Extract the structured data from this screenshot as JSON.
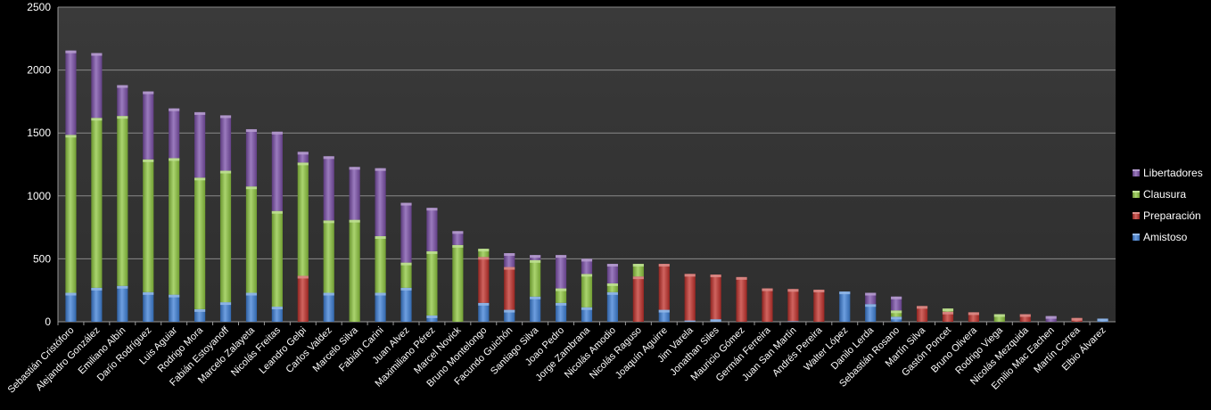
{
  "chart_data": {
    "type": "bar",
    "stacked": true,
    "categories": [
      "Sebastián Cristóforo",
      "Alejandro González",
      "Emiliano Albín",
      "Darío Rodríguez",
      "Luis Aguiar",
      "Rodrigo Mora",
      "Fabián Estoyanoff",
      "Marcelo Zalayeta",
      "Nicolás Freitas",
      "Leandro Gelpi",
      "Carlos Valdez",
      "Marcelo Silva",
      "Fabián Carini",
      "Juan Alvez",
      "Maximiliano Pérez",
      "Marcel Novick",
      "Bruno Montelongo",
      "Facundo Guichón",
      "Santiago Silva",
      "Joao Pedro",
      "Jorge Zambrana",
      "Nicolás Amodio",
      "Nicolás Raguso",
      "Joaquín Aguirre",
      "Jim Varela",
      "Jonathan Siles",
      "Mauricio Gómez",
      "Germán Ferreira",
      "Juan San Martín",
      "Andrés Pereira",
      "Walter López",
      "Danilo Lerda",
      "Sebastián Rosano",
      "Martín Silva",
      "Gastón Poncet",
      "Bruno Olivera",
      "Rodrigo Viega",
      "Nicolás Mezquida",
      "Emilio Mac Eachen",
      "Martín Correa",
      "Elbio Álvarez"
    ],
    "series": [
      {
        "name": "Amistoso",
        "color": "#3d7fd6",
        "values": [
          230,
          270,
          285,
          235,
          215,
          100,
          155,
          230,
          120,
          0,
          230,
          0,
          230,
          270,
          50,
          0,
          150,
          95,
          200,
          150,
          115,
          235,
          0,
          95,
          10,
          20,
          0,
          0,
          5,
          0,
          240,
          140,
          40,
          0,
          0,
          0,
          0,
          0,
          0,
          0,
          25
        ]
      },
      {
        "name": "Preparación",
        "color": "#c0302a",
        "values": [
          0,
          0,
          0,
          0,
          0,
          0,
          0,
          0,
          0,
          365,
          0,
          0,
          0,
          0,
          0,
          0,
          365,
          340,
          0,
          0,
          0,
          0,
          360,
          365,
          370,
          355,
          355,
          265,
          255,
          255,
          0,
          0,
          0,
          125,
          80,
          75,
          0,
          60,
          0,
          30,
          0
        ]
      },
      {
        "name": "Clausura",
        "color": "#8dc63f",
        "values": [
          1255,
          1350,
          1350,
          1055,
          1085,
          1045,
          1045,
          845,
          760,
          900,
          575,
          810,
          450,
          200,
          510,
          610,
          65,
          0,
          290,
          115,
          265,
          70,
          100,
          0,
          0,
          0,
          0,
          0,
          0,
          0,
          0,
          0,
          50,
          0,
          25,
          0,
          60,
          0,
          0,
          0,
          0
        ]
      },
      {
        "name": "Libertadores",
        "color": "#7a4fa8",
        "values": [
          670,
          515,
          245,
          540,
          395,
          520,
          440,
          455,
          630,
          85,
          510,
          420,
          540,
          475,
          345,
          110,
          0,
          110,
          40,
          265,
          120,
          155,
          0,
          0,
          0,
          0,
          0,
          0,
          0,
          0,
          0,
          90,
          110,
          0,
          0,
          0,
          0,
          0,
          45,
          0,
          0
        ]
      }
    ],
    "title": "",
    "xlabel": "",
    "ylabel": "",
    "ylim": [
      0,
      2500
    ],
    "yticks": [
      "0",
      "500",
      "1000",
      "1500",
      "2000",
      "2500"
    ],
    "grid": true,
    "legend": {
      "placement": "right",
      "order": [
        "Libertadores",
        "Clausura",
        "Preparación",
        "Amistoso"
      ]
    }
  }
}
